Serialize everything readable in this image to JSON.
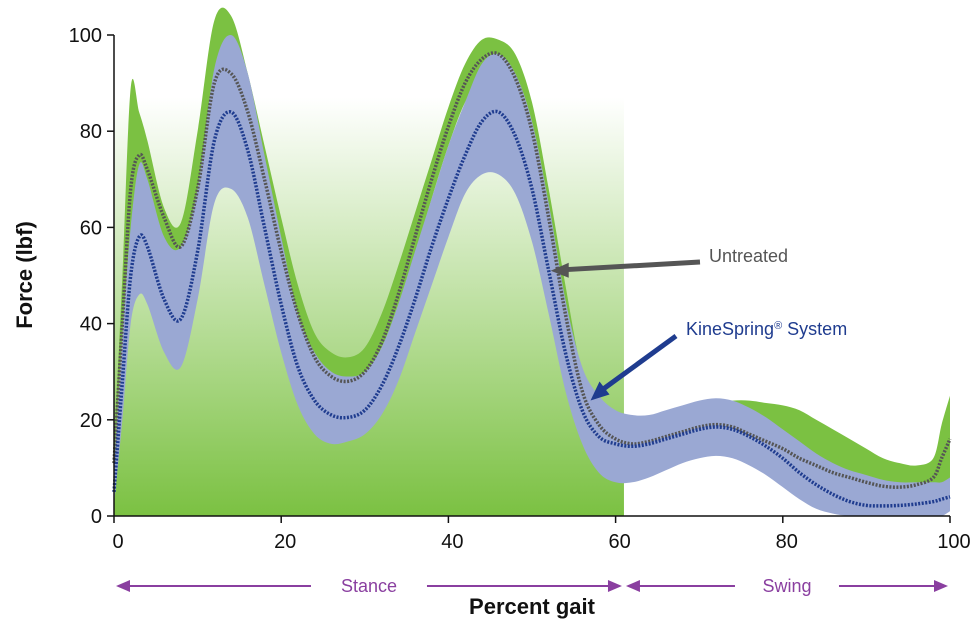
{
  "chart_data": {
    "type": "line",
    "title": "",
    "xlabel": "Percent gait",
    "ylabel": "Force (lbf)",
    "xlim": [
      0,
      100
    ],
    "ylim": [
      0,
      100
    ],
    "x_ticks": [
      0,
      20,
      40,
      60,
      80,
      100
    ],
    "y_ticks": [
      0,
      20,
      40,
      60,
      80,
      100
    ],
    "grid": false,
    "shaded_region": {
      "x_start": 0,
      "x_end": 61,
      "color_top": "#ffffff",
      "color_bottom": "#7bc142"
    },
    "phases": [
      {
        "label": "Stance",
        "x_start": 0,
        "x_end": 61,
        "color": "#8a3fa0"
      },
      {
        "label": "Swing",
        "x_start": 61,
        "x_end": 100,
        "color": "#8a3fa0"
      }
    ],
    "series": [
      {
        "name": "Untreated",
        "color": "#555555",
        "band_color": "#7bc142",
        "x": [
          0,
          1,
          2,
          3,
          4,
          6,
          8,
          10,
          12,
          14,
          16,
          18,
          20,
          22,
          24,
          26,
          28,
          30,
          32,
          34,
          36,
          38,
          40,
          42,
          44,
          46,
          48,
          50,
          52,
          54,
          56,
          58,
          60,
          62,
          64,
          66,
          68,
          70,
          72,
          74,
          76,
          78,
          80,
          82,
          84,
          86,
          88,
          90,
          92,
          94,
          96,
          98,
          99,
          100
        ],
        "y": [
          11,
          40,
          68,
          75,
          72,
          62,
          56,
          68,
          90,
          92,
          84,
          70,
          55,
          42,
          33,
          29,
          28,
          30,
          36,
          46,
          58,
          70,
          81,
          90,
          95,
          96,
          91,
          80,
          62,
          42,
          26,
          19,
          16,
          15,
          15.5,
          16.5,
          17.5,
          18.5,
          19,
          18.5,
          17,
          15.5,
          14,
          12,
          10.5,
          9,
          8,
          7,
          6.2,
          6,
          6.5,
          8,
          12,
          16
        ],
        "lower": [
          6,
          30,
          58,
          66,
          64,
          56,
          52,
          62,
          85,
          87,
          78,
          64,
          48,
          36,
          30,
          26,
          25,
          27,
          32,
          42,
          54,
          66,
          77,
          86,
          91,
          92,
          86,
          74,
          55,
          36,
          22,
          14,
          10,
          9,
          10,
          12,
          14,
          15.5,
          16,
          15,
          13,
          10.5,
          8,
          6,
          4,
          2.5,
          1.5,
          1,
          1,
          1.5,
          2,
          3,
          4,
          6
        ],
        "upper": [
          14,
          50,
          89,
          84,
          78,
          64,
          61,
          80,
          103,
          104,
          92,
          77,
          62,
          48,
          38,
          34,
          33,
          35,
          42,
          52,
          63,
          74,
          85,
          94,
          99,
          99,
          96,
          86,
          68,
          48,
          30,
          24,
          20,
          18,
          18,
          19,
          21,
          22.5,
          23.5,
          24,
          24,
          23.5,
          23,
          22,
          20,
          18,
          16,
          14,
          12,
          11,
          10.5,
          12,
          19,
          25
        ]
      },
      {
        "name": "KineSpring® System",
        "color": "#1f3c8f",
        "band_color": "#9aa8d3",
        "x": [
          0,
          1,
          2,
          3,
          4,
          6,
          8,
          10,
          12,
          14,
          16,
          18,
          20,
          22,
          24,
          26,
          28,
          30,
          32,
          34,
          36,
          38,
          40,
          42,
          44,
          46,
          48,
          50,
          52,
          54,
          56,
          58,
          60,
          62,
          64,
          66,
          68,
          70,
          72,
          74,
          76,
          78,
          80,
          82,
          84,
          86,
          88,
          90,
          92,
          94,
          96,
          98,
          99,
          100
        ],
        "y": [
          5,
          28,
          50,
          58,
          56,
          45,
          41,
          55,
          78,
          84,
          76,
          60,
          44,
          31,
          24,
          21,
          20.5,
          22,
          27,
          35,
          45,
          56,
          66,
          75,
          82,
          84,
          79,
          68,
          51,
          34,
          22,
          16.5,
          15,
          14.5,
          15,
          16,
          17,
          18,
          18.5,
          18,
          16.5,
          14.5,
          12,
          9,
          6.5,
          4.5,
          3,
          2.2,
          2.1,
          2.2,
          2.5,
          3,
          3.5,
          4
        ],
        "lower": [
          2,
          20,
          40,
          46,
          44,
          34,
          31,
          45,
          65,
          68,
          62,
          48,
          34,
          23,
          17,
          15,
          15.5,
          17,
          21,
          28,
          38,
          48,
          58,
          67,
          71,
          71,
          67,
          57,
          42,
          26,
          15,
          9,
          7,
          7,
          8,
          9.5,
          11,
          12,
          12.5,
          12,
          10.5,
          8.5,
          6,
          3.5,
          1.5,
          0.5,
          0,
          0,
          0,
          0,
          0,
          0,
          0,
          1
        ],
        "upper": [
          10,
          38,
          60,
          73,
          70,
          58,
          56,
          68,
          93,
          100,
          92,
          75,
          58,
          42,
          34,
          30,
          29,
          30,
          35,
          44,
          55,
          66,
          77,
          86,
          94,
          96,
          92,
          82,
          65,
          45,
          31,
          25,
          22,
          21,
          21,
          22,
          23,
          24,
          24.5,
          24,
          22.5,
          20.5,
          18,
          15.5,
          13,
          11,
          9.5,
          8.5,
          7.5,
          7,
          7,
          7,
          7,
          8
        ]
      }
    ],
    "annotations": [
      {
        "text": "Untreated",
        "color": "#555555",
        "arrow_to": {
          "x": 52,
          "y": 51
        }
      },
      {
        "text": "KineSpring",
        "superscript": "®",
        "text_after": " System",
        "color": "#1f3c8f",
        "arrow_to": {
          "x": 57,
          "y": 24
        }
      }
    ]
  }
}
